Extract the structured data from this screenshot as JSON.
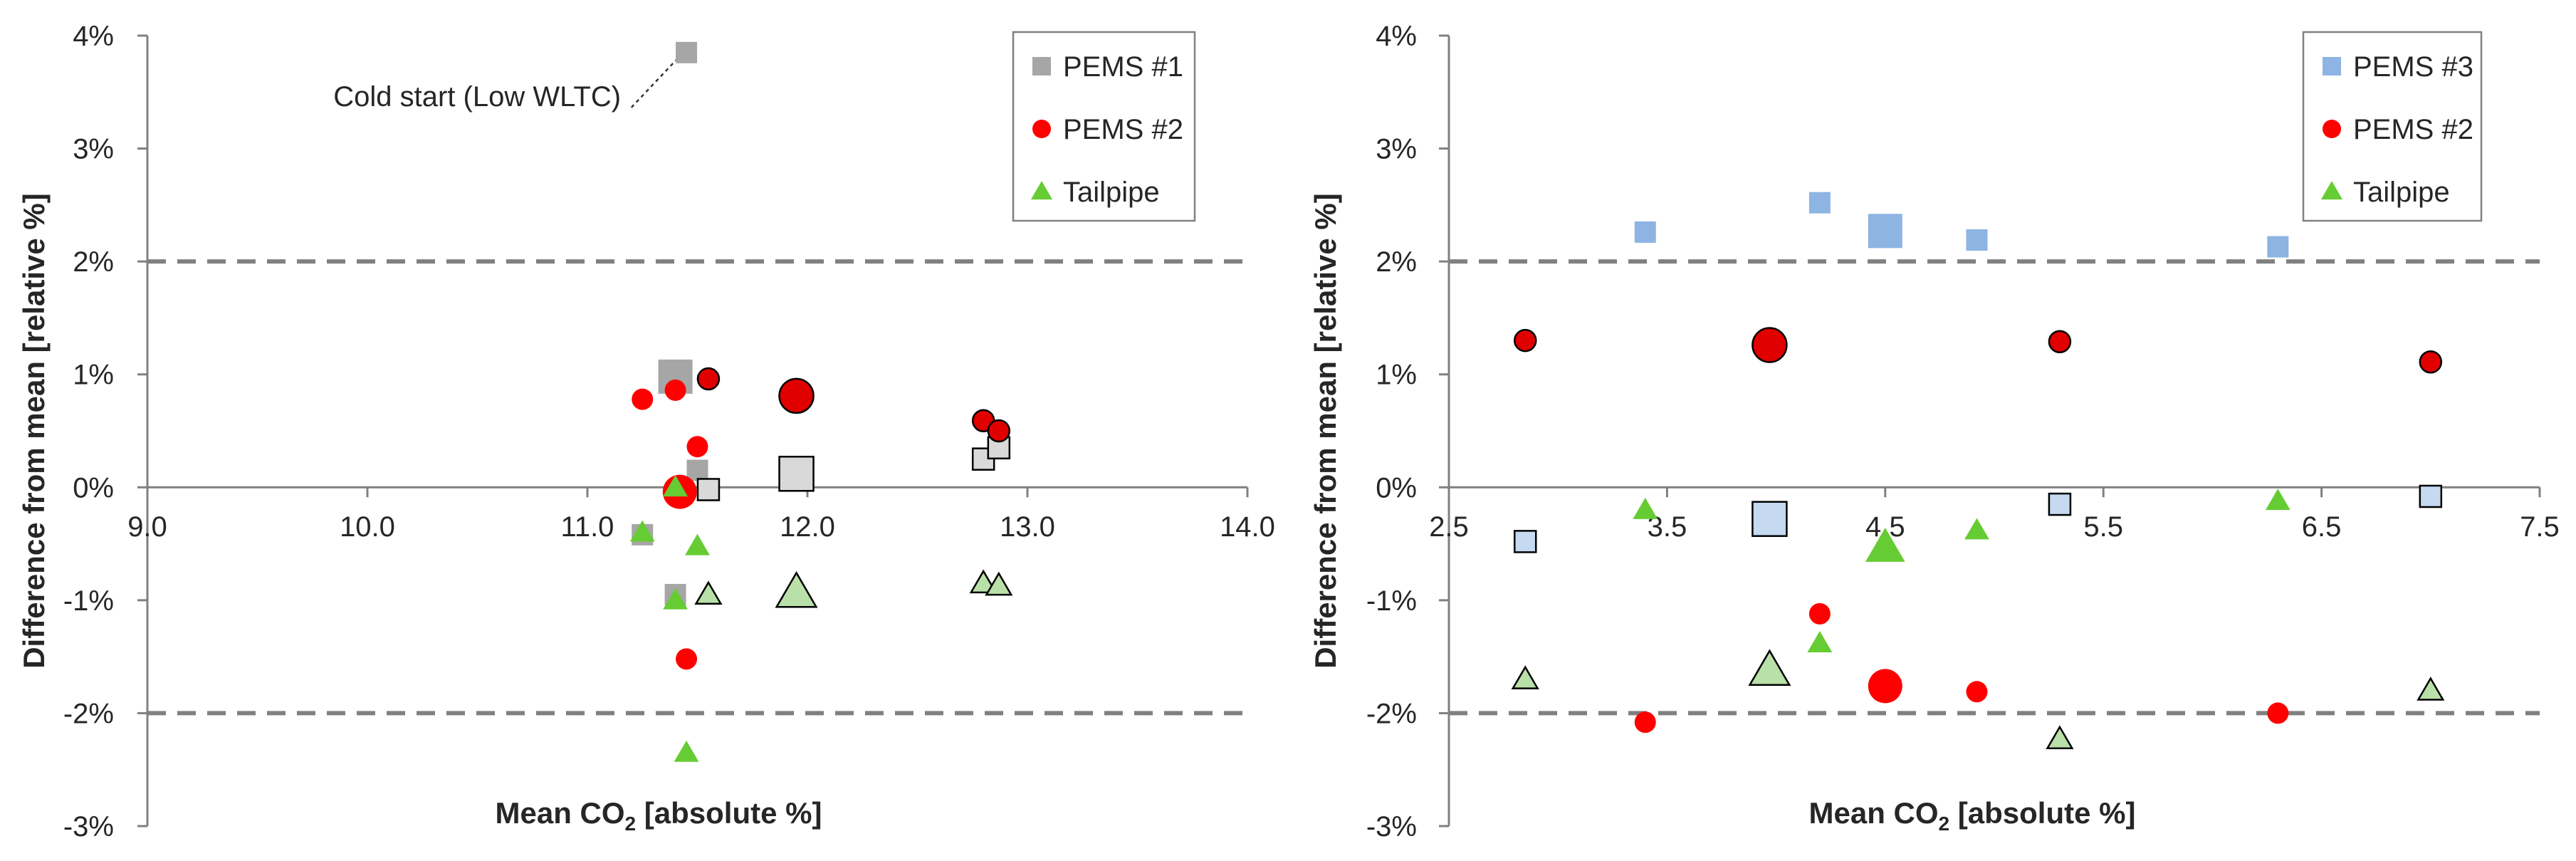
{
  "colors": {
    "pems1": "#a6a6a6",
    "pems1_light": "#d9d9d9",
    "pems2": "#ff0000",
    "pems2_dark": "#e00000",
    "pems3": "#8db4e2",
    "pems3_light": "#c5d9f1",
    "tailpipe": "#66cc33",
    "tailpipe_light": "#b8e0a8",
    "limit_line": "#808080",
    "axis": "#808080"
  },
  "chart_data": [
    {
      "type": "scatter",
      "xlabel": "Mean CO2 [absolute %]",
      "xlabel_main": "Mean CO",
      "xlabel_sub": "2",
      "xlabel_tail": " [absolute %]",
      "ylabel": "Difference from mean [relative %]",
      "xlim": [
        9.0,
        14.0
      ],
      "ylim": [
        -3,
        4
      ],
      "x_ticks": [
        "9.0",
        "10.0",
        "11.0",
        "12.0",
        "13.0",
        "14.0"
      ],
      "y_ticks": [
        "-3%",
        "-2%",
        "-1%",
        "0%",
        "1%",
        "2%",
        "3%",
        "4%"
      ],
      "reference_lines": [
        2,
        -2
      ],
      "legend": [
        {
          "label": "PEMS #1",
          "marker": "square",
          "color": "pems1"
        },
        {
          "label": "PEMS #2",
          "marker": "circle",
          "color": "pems2"
        },
        {
          "label": "Tailpipe",
          "marker": "triangle",
          "color": "tailpipe"
        }
      ],
      "annotation": {
        "text": "Cold start (Low WLTC)",
        "x": 11.45,
        "y": 3.85
      },
      "series": [
        {
          "name": "PEMS #1",
          "marker": "square",
          "points": [
            {
              "x": 11.45,
              "y": 3.85,
              "size": "m",
              "style": "solid"
            },
            {
              "x": 11.4,
              "y": 0.98,
              "size": "l",
              "style": "solid"
            },
            {
              "x": 11.5,
              "y": 0.15,
              "size": "m",
              "style": "solid"
            },
            {
              "x": 11.4,
              "y": -0.95,
              "size": "m",
              "style": "solid"
            },
            {
              "x": 11.25,
              "y": -0.42,
              "size": "m",
              "style": "solid"
            },
            {
              "x": 11.55,
              "y": -0.02,
              "size": "m",
              "style": "light"
            },
            {
              "x": 11.95,
              "y": 0.12,
              "size": "l",
              "style": "light"
            },
            {
              "x": 12.8,
              "y": 0.25,
              "size": "m",
              "style": "light"
            },
            {
              "x": 12.87,
              "y": 0.35,
              "size": "m",
              "style": "light"
            }
          ]
        },
        {
          "name": "PEMS #2",
          "marker": "circle",
          "points": [
            {
              "x": 11.25,
              "y": 0.78,
              "size": "m",
              "style": "solid"
            },
            {
              "x": 11.4,
              "y": 0.86,
              "size": "m",
              "style": "solid"
            },
            {
              "x": 11.55,
              "y": 0.96,
              "size": "m",
              "style": "outline"
            },
            {
              "x": 11.95,
              "y": 0.81,
              "size": "l",
              "style": "outline"
            },
            {
              "x": 11.5,
              "y": 0.36,
              "size": "m",
              "style": "solid"
            },
            {
              "x": 11.42,
              "y": -0.04,
              "size": "l",
              "style": "solid"
            },
            {
              "x": 11.45,
              "y": -1.52,
              "size": "m",
              "style": "solid"
            },
            {
              "x": 12.8,
              "y": 0.59,
              "size": "m",
              "style": "outline"
            },
            {
              "x": 12.87,
              "y": 0.5,
              "size": "m",
              "style": "outline"
            }
          ]
        },
        {
          "name": "Tailpipe",
          "marker": "triangle",
          "points": [
            {
              "x": 11.4,
              "y": 0.0,
              "size": "m",
              "style": "solid"
            },
            {
              "x": 11.25,
              "y": -0.4,
              "size": "m",
              "style": "solid"
            },
            {
              "x": 11.5,
              "y": -0.52,
              "size": "m",
              "style": "solid"
            },
            {
              "x": 11.4,
              "y": -1.0,
              "size": "m",
              "style": "solid"
            },
            {
              "x": 11.55,
              "y": -0.95,
              "size": "m",
              "style": "light"
            },
            {
              "x": 11.95,
              "y": -0.93,
              "size": "l",
              "style": "light"
            },
            {
              "x": 11.45,
              "y": -2.35,
              "size": "m",
              "style": "solid"
            },
            {
              "x": 12.8,
              "y": -0.85,
              "size": "m",
              "style": "light"
            },
            {
              "x": 12.87,
              "y": -0.87,
              "size": "m",
              "style": "light"
            }
          ]
        }
      ]
    },
    {
      "type": "scatter",
      "xlabel": "Mean CO2 [absolute %]",
      "xlabel_main": "Mean CO",
      "xlabel_sub": "2",
      "xlabel_tail": " [absolute %]",
      "ylabel": "Difference from mean [relative %]",
      "xlim": [
        2.5,
        7.5
      ],
      "ylim": [
        -3,
        4
      ],
      "x_ticks": [
        "2.5",
        "3.5",
        "4.5",
        "5.5",
        "6.5",
        "7.5"
      ],
      "y_ticks": [
        "-3%",
        "-2%",
        "-1%",
        "0%",
        "1%",
        "2%",
        "3%",
        "4%"
      ],
      "reference_lines": [
        2,
        -2
      ],
      "legend": [
        {
          "label": "PEMS #3",
          "marker": "square",
          "color": "pems3"
        },
        {
          "label": "PEMS #2",
          "marker": "circle",
          "color": "pems2"
        },
        {
          "label": "Tailpipe",
          "marker": "triangle",
          "color": "tailpipe"
        }
      ],
      "series": [
        {
          "name": "PEMS #3",
          "marker": "square",
          "points": [
            {
              "x": 3.4,
              "y": 2.26,
              "size": "m",
              "style": "solid"
            },
            {
              "x": 4.2,
              "y": 2.52,
              "size": "m",
              "style": "solid"
            },
            {
              "x": 4.5,
              "y": 2.27,
              "size": "l",
              "style": "solid"
            },
            {
              "x": 4.92,
              "y": 2.19,
              "size": "m",
              "style": "solid"
            },
            {
              "x": 6.3,
              "y": 2.13,
              "size": "m",
              "style": "solid"
            },
            {
              "x": 2.85,
              "y": -0.48,
              "size": "m",
              "style": "light"
            },
            {
              "x": 3.97,
              "y": -0.28,
              "size": "l",
              "style": "light"
            },
            {
              "x": 5.3,
              "y": -0.15,
              "size": "m",
              "style": "light"
            },
            {
              "x": 7.0,
              "y": -0.08,
              "size": "m",
              "style": "light"
            }
          ]
        },
        {
          "name": "PEMS #2",
          "marker": "circle",
          "points": [
            {
              "x": 2.85,
              "y": 1.3,
              "size": "m",
              "style": "outline"
            },
            {
              "x": 3.97,
              "y": 1.26,
              "size": "l",
              "style": "outline"
            },
            {
              "x": 5.3,
              "y": 1.29,
              "size": "m",
              "style": "outline"
            },
            {
              "x": 7.0,
              "y": 1.11,
              "size": "m",
              "style": "outline"
            },
            {
              "x": 4.2,
              "y": -1.12,
              "size": "m",
              "style": "solid"
            },
            {
              "x": 3.4,
              "y": -2.08,
              "size": "m",
              "style": "solid"
            },
            {
              "x": 4.5,
              "y": -1.76,
              "size": "l",
              "style": "solid"
            },
            {
              "x": 4.92,
              "y": -1.81,
              "size": "m",
              "style": "solid"
            },
            {
              "x": 6.3,
              "y": -2.0,
              "size": "m",
              "style": "solid"
            }
          ]
        },
        {
          "name": "Tailpipe",
          "marker": "triangle",
          "points": [
            {
              "x": 3.4,
              "y": -0.2,
              "size": "m",
              "style": "solid"
            },
            {
              "x": 4.92,
              "y": -0.38,
              "size": "m",
              "style": "solid"
            },
            {
              "x": 4.5,
              "y": -0.53,
              "size": "l",
              "style": "solid"
            },
            {
              "x": 6.3,
              "y": -0.12,
              "size": "m",
              "style": "solid"
            },
            {
              "x": 4.2,
              "y": -1.38,
              "size": "m",
              "style": "solid"
            },
            {
              "x": 2.85,
              "y": -1.7,
              "size": "m",
              "style": "light"
            },
            {
              "x": 3.97,
              "y": -1.62,
              "size": "l",
              "style": "light"
            },
            {
              "x": 5.3,
              "y": -2.23,
              "size": "m",
              "style": "light"
            },
            {
              "x": 7.0,
              "y": -1.8,
              "size": "m",
              "style": "light"
            }
          ]
        }
      ]
    }
  ]
}
